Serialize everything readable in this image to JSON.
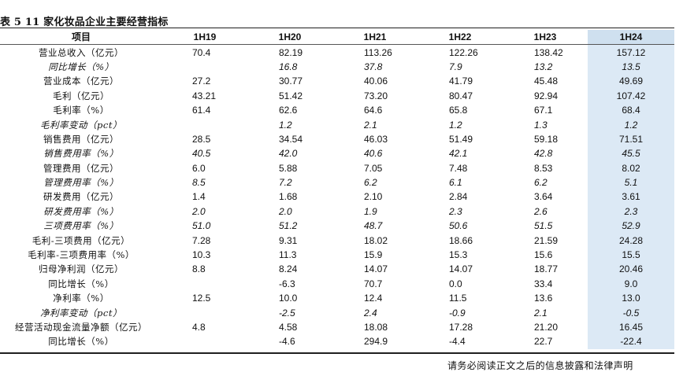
{
  "title": "表 5 11 家化妆品企业主要经营指标",
  "columns": [
    "项目",
    "1H19",
    "1H20",
    "1H21",
    "1H22",
    "1H23",
    "1H24"
  ],
  "rows": [
    {
      "label": "营业总收入（亿元）",
      "italic": false,
      "values": [
        "70.4",
        "82.19",
        "113.26",
        "122.26",
        "138.42",
        "157.12"
      ]
    },
    {
      "label": "同比增长（%）",
      "italic": true,
      "values": [
        "",
        "16.8",
        "37.8",
        "7.9",
        "13.2",
        "13.5"
      ]
    },
    {
      "label": "营业成本（亿元）",
      "italic": false,
      "values": [
        "27.2",
        "30.77",
        "40.06",
        "41.79",
        "45.48",
        "49.69"
      ]
    },
    {
      "label": "毛利（亿元）",
      "italic": false,
      "values": [
        "43.21",
        "51.42",
        "73.20",
        "80.47",
        "92.94",
        "107.42"
      ]
    },
    {
      "label": "毛利率（%）",
      "italic": false,
      "values": [
        "61.4",
        "62.6",
        "64.6",
        "65.8",
        "67.1",
        "68.4"
      ]
    },
    {
      "label": "毛利率变动（pct）",
      "italic": true,
      "values": [
        "",
        "1.2",
        "2.1",
        "1.2",
        "1.3",
        "1.2"
      ]
    },
    {
      "label": "销售费用（亿元）",
      "italic": false,
      "values": [
        "28.5",
        "34.54",
        "46.03",
        "51.49",
        "59.18",
        "71.51"
      ]
    },
    {
      "label": "销售费用率（%）",
      "italic": true,
      "values": [
        "40.5",
        "42.0",
        "40.6",
        "42.1",
        "42.8",
        "45.5"
      ]
    },
    {
      "label": "管理费用（亿元）",
      "italic": false,
      "values": [
        "6.0",
        "5.88",
        "7.05",
        "7.48",
        "8.53",
        "8.02"
      ]
    },
    {
      "label": "管理费用率（%）",
      "italic": true,
      "values": [
        "8.5",
        "7.2",
        "6.2",
        "6.1",
        "6.2",
        "5.1"
      ]
    },
    {
      "label": "研发费用（亿元）",
      "italic": false,
      "values": [
        "1.4",
        "1.68",
        "2.10",
        "2.84",
        "3.64",
        "3.61"
      ]
    },
    {
      "label": "研发费用率（%）",
      "italic": true,
      "values": [
        "2.0",
        "2.0",
        "1.9",
        "2.3",
        "2.6",
        "2.3"
      ]
    },
    {
      "label": "三项费用率（%）",
      "italic": true,
      "values": [
        "51.0",
        "51.2",
        "48.7",
        "50.6",
        "51.5",
        "52.9"
      ]
    },
    {
      "label": "毛利-三项费用（亿元）",
      "italic": false,
      "values": [
        "7.28",
        "9.31",
        "18.02",
        "18.66",
        "21.59",
        "24.28"
      ]
    },
    {
      "label": "毛利率-三项费用率（%）",
      "italic": false,
      "values": [
        "10.3",
        "11.3",
        "15.9",
        "15.3",
        "15.6",
        "15.5"
      ]
    },
    {
      "label": "归母净利润（亿元）",
      "italic": false,
      "values": [
        "8.8",
        "8.24",
        "14.07",
        "14.07",
        "18.77",
        "20.46"
      ]
    },
    {
      "label": "同比增长（%）",
      "italic": false,
      "values": [
        "",
        "-6.3",
        "70.7",
        "0.0",
        "33.4",
        "9.0"
      ]
    },
    {
      "label": "净利率（%）",
      "italic": false,
      "values": [
        "12.5",
        "10.0",
        "12.4",
        "11.5",
        "13.6",
        "13.0"
      ]
    },
    {
      "label": "净利率变动（pct）",
      "italic": true,
      "values": [
        "",
        "-2.5",
        "2.4",
        "-0.9",
        "2.1",
        "-0.5"
      ]
    },
    {
      "label": "经营活动现金流量净额（亿元）",
      "italic": false,
      "values": [
        "4.8",
        "4.58",
        "18.08",
        "17.28",
        "21.20",
        "16.45"
      ]
    },
    {
      "label": "同比增长（%）",
      "italic": false,
      "values": [
        "",
        "-4.6",
        "294.9",
        "-4.4",
        "22.7",
        "-22.4"
      ]
    }
  ],
  "footer": "请务必阅读正文之后的信息披露和法律声明",
  "colors": {
    "highlight_header": "#cfe0ef",
    "highlight_column": "#dce9f5"
  }
}
